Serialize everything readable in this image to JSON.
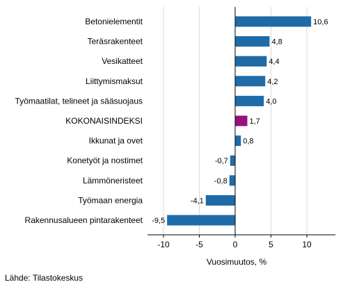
{
  "chart_data": {
    "type": "bar",
    "orientation": "horizontal",
    "categories": [
      "Betonielementit",
      "Teräsrakenteet",
      "Vesikatteet",
      "Liittymismaksut",
      "Työmaatilat, telineet ja sääsuojaus",
      "KOKONAISINDEKSI",
      "Ikkunat ja ovet",
      "Konetyöt ja nostimet",
      "Lämmöneristeet",
      "Työmaan energia",
      "Rakennusalueen pintarakenteet"
    ],
    "values": [
      10.6,
      4.8,
      4.4,
      4.2,
      4.0,
      1.7,
      0.8,
      -0.7,
      -0.8,
      -4.1,
      -9.5
    ],
    "value_labels": [
      "10,6",
      "4,8",
      "4,4",
      "4,2",
      "4,0",
      "1,7",
      "0,8",
      "-0,7",
      "-0,8",
      "-4,1",
      "-9,5"
    ],
    "highlight_category": "KOKONAISINDEKSI",
    "xlabel": "Vuosimuutos, %",
    "xlim": [
      -12,
      14
    ],
    "xticks": [
      -10,
      -5,
      0,
      5,
      10
    ],
    "xtick_labels": [
      "-10",
      "-5",
      "0",
      "5",
      "10"
    ],
    "grid": "vertical",
    "colors": {
      "bar": "#1f6ba8",
      "highlight": "#98127c",
      "grid": "#d9d9d9",
      "axis": "#000000"
    }
  },
  "source": "Lähde: Tilastokeskus"
}
